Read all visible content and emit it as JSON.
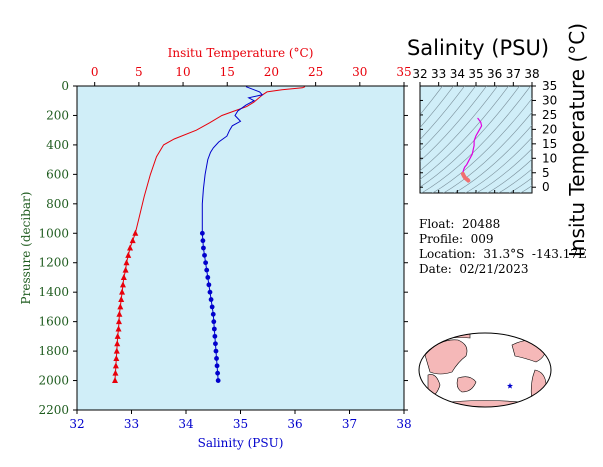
{
  "chart_data": [
    {
      "type": "line",
      "name": "main-profile",
      "top_axis": {
        "label": "Insitu Temperature (°C)",
        "range": [
          -2,
          35
        ],
        "ticks": [
          0,
          5,
          10,
          15,
          20,
          25,
          30,
          35
        ],
        "color": "#e8000b"
      },
      "bottom_axis": {
        "label": "Salinity (PSU)",
        "range": [
          32,
          38
        ],
        "ticks": [
          32,
          33,
          34,
          35,
          36,
          37,
          38
        ],
        "color": "#0000cc"
      },
      "y_axis": {
        "label": "Pressure (decibar)",
        "range": [
          0,
          2200
        ],
        "inverted": true,
        "ticks": [
          0,
          200,
          400,
          600,
          800,
          1000,
          1200,
          1400,
          1600,
          1800,
          2000,
          2200
        ],
        "color": "#1f5c1f"
      },
      "background": "#d0eef8",
      "series": [
        {
          "variable": "temperature",
          "color": "#e8000b",
          "marker": "triangle",
          "line": [
            [
              23.8,
              5
            ],
            [
              23.5,
              12
            ],
            [
              21.2,
              25
            ],
            [
              19.5,
              40
            ],
            [
              19.0,
              60
            ],
            [
              18.5,
              85
            ],
            [
              18.0,
              110
            ],
            [
              17.2,
              140
            ],
            [
              15.8,
              170
            ],
            [
              14.4,
              200
            ],
            [
              13.0,
              250
            ],
            [
              11.5,
              300
            ],
            [
              9.0,
              360
            ],
            [
              7.8,
              400
            ],
            [
              7.0,
              480
            ],
            [
              6.3,
              600
            ],
            [
              5.6,
              750
            ],
            [
              5.0,
              900
            ],
            [
              4.6,
              1000
            ]
          ],
          "markers": [
            [
              4.6,
              1000
            ],
            [
              4.3,
              1050
            ],
            [
              4.0,
              1100
            ],
            [
              3.8,
              1150
            ],
            [
              3.6,
              1200
            ],
            [
              3.5,
              1250
            ],
            [
              3.3,
              1300
            ],
            [
              3.2,
              1350
            ],
            [
              3.1,
              1400
            ],
            [
              3.0,
              1450
            ],
            [
              2.9,
              1500
            ],
            [
              2.8,
              1550
            ],
            [
              2.75,
              1600
            ],
            [
              2.7,
              1650
            ],
            [
              2.6,
              1700
            ],
            [
              2.55,
              1750
            ],
            [
              2.5,
              1800
            ],
            [
              2.45,
              1850
            ],
            [
              2.4,
              1900
            ],
            [
              2.35,
              1950
            ],
            [
              2.3,
              2000
            ]
          ]
        },
        {
          "variable": "salinity",
          "color": "#0000cc",
          "marker": "dot",
          "line": [
            [
              35.1,
              5
            ],
            [
              35.35,
              40
            ],
            [
              35.4,
              60
            ],
            [
              35.15,
              80
            ],
            [
              35.25,
              100
            ],
            [
              35.1,
              130
            ],
            [
              34.95,
              170
            ],
            [
              34.9,
              200
            ],
            [
              35.0,
              240
            ],
            [
              34.85,
              270
            ],
            [
              34.8,
              300
            ],
            [
              34.75,
              340
            ],
            [
              34.6,
              380
            ],
            [
              34.5,
              420
            ],
            [
              34.45,
              450
            ],
            [
              34.4,
              500
            ],
            [
              34.35,
              600
            ],
            [
              34.32,
              700
            ],
            [
              34.3,
              800
            ],
            [
              34.3,
              900
            ],
            [
              34.3,
              1000
            ]
          ],
          "markers": [
            [
              34.3,
              1000
            ],
            [
              34.31,
              1050
            ],
            [
              34.32,
              1100
            ],
            [
              34.34,
              1150
            ],
            [
              34.36,
              1200
            ],
            [
              34.38,
              1250
            ],
            [
              34.4,
              1300
            ],
            [
              34.42,
              1350
            ],
            [
              34.44,
              1400
            ],
            [
              34.46,
              1450
            ],
            [
              34.48,
              1500
            ],
            [
              34.5,
              1550
            ],
            [
              34.51,
              1600
            ],
            [
              34.52,
              1650
            ],
            [
              34.53,
              1700
            ],
            [
              34.54,
              1750
            ],
            [
              34.55,
              1800
            ],
            [
              34.56,
              1850
            ],
            [
              34.57,
              1900
            ],
            [
              34.58,
              1950
            ],
            [
              34.59,
              2000
            ]
          ]
        }
      ]
    },
    {
      "type": "line",
      "name": "ts-diagram",
      "title": "Salinity (PSU)",
      "ylabel": "Insitu Temperature (°C)",
      "x_axis": {
        "range": [
          32,
          38
        ],
        "ticks": [
          "32",
          "33",
          "34",
          "35",
          "36",
          "37",
          "38"
        ]
      },
      "y_axis": {
        "range": [
          -2,
          35
        ],
        "ticks": [
          "0",
          "5",
          "10",
          "15",
          "20",
          "25",
          "30",
          "35"
        ]
      },
      "background": "#d0eef8",
      "series": [
        {
          "variable": "ts-curve",
          "color": "#e000e0",
          "points": [
            [
              35.1,
              23.8
            ],
            [
              35.25,
              22.5
            ],
            [
              35.3,
              21.2
            ],
            [
              35.15,
              19.5
            ],
            [
              35.0,
              17.8
            ],
            [
              34.9,
              16.0
            ],
            [
              34.9,
              14.4
            ],
            [
              34.85,
              13.0
            ],
            [
              34.8,
              11.5
            ],
            [
              34.6,
              9.0
            ],
            [
              34.5,
              7.8
            ],
            [
              34.4,
              7.0
            ],
            [
              34.35,
              6.3
            ],
            [
              34.32,
              5.6
            ],
            [
              34.3,
              5.0
            ],
            [
              34.3,
              4.6
            ]
          ]
        },
        {
          "variable": "ts-deep",
          "color": "#f07070",
          "points": [
            [
              34.3,
              4.6
            ],
            [
              34.34,
              4.0
            ],
            [
              34.38,
              3.6
            ],
            [
              34.42,
              3.2
            ],
            [
              34.46,
              3.0
            ],
            [
              34.5,
              2.8
            ],
            [
              34.53,
              2.6
            ],
            [
              34.56,
              2.5
            ],
            [
              34.59,
              2.3
            ]
          ]
        }
      ]
    }
  ],
  "info": {
    "float_line": "Float:  20488",
    "profile_line": "Profile:  009",
    "location_line": "Location:  31.3°S  -143.17E",
    "date_line": "Date:  02/21/2023"
  },
  "map": {
    "ocean_color": "#ffffff",
    "land_color": "#f5b8b8",
    "marker_color": "#0000cc",
    "marker_icon": "star-icon"
  }
}
